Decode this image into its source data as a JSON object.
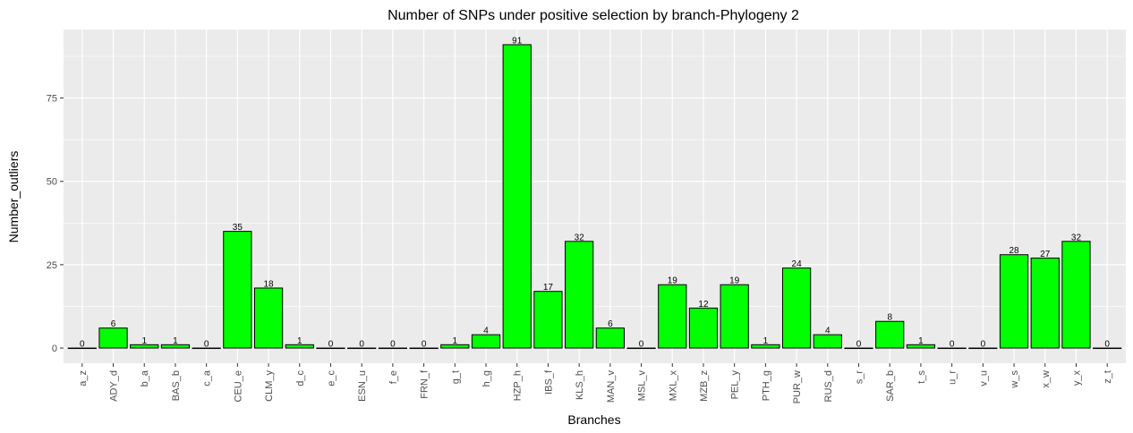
{
  "chart_data": {
    "type": "bar",
    "title": "Number of SNPs under positive selection by branch-Phylogeny 2",
    "xlabel": "Branches",
    "ylabel": "Number_outliers",
    "categories": [
      "a_z",
      "ADY_d",
      "b_a",
      "BAS_b",
      "c_a",
      "CEU_e",
      "CLM_y",
      "d_c",
      "e_c",
      "ESN_u",
      "f_e",
      "FRN_f",
      "g_t",
      "h_g",
      "HZP_h",
      "IBS_f",
      "KLS_h",
      "MAN_v",
      "MSL_v",
      "MXL_x",
      "MZB_z",
      "PEL_y",
      "PTH_g",
      "PUR_w",
      "RUS_d",
      "s_r",
      "SAR_b",
      "t_s",
      "u_r",
      "v_u",
      "w_s",
      "x_w",
      "y_x",
      "z_t"
    ],
    "values": [
      0,
      6,
      1,
      1,
      0,
      35,
      18,
      1,
      0,
      0,
      0,
      0,
      1,
      4,
      91,
      17,
      32,
      6,
      0,
      19,
      12,
      19,
      1,
      24,
      4,
      0,
      8,
      1,
      0,
      0,
      28,
      27,
      32,
      0
    ],
    "data_labels": [
      "0",
      "6",
      "1",
      "1",
      "0",
      "35",
      "18",
      "1",
      "0",
      "0",
      "0",
      "0",
      "1",
      "4",
      "91",
      "17",
      "32",
      "6",
      "0",
      "19",
      "12",
      "19",
      "1",
      "24",
      "4",
      "0",
      "8",
      "1",
      "0",
      "0",
      "28",
      "27",
      "32",
      "0"
    ],
    "y_ticks": [
      0,
      25,
      50,
      75
    ],
    "y_tick_labels": [
      "0",
      "25",
      "50",
      "75"
    ],
    "ylim": [
      -4.55,
      95.55
    ],
    "grid": true,
    "legend": "none",
    "bar_fill": "#00ff00",
    "bar_stroke": "#000000",
    "panel_background": "#ebebeb",
    "grid_color": "#ffffff"
  }
}
